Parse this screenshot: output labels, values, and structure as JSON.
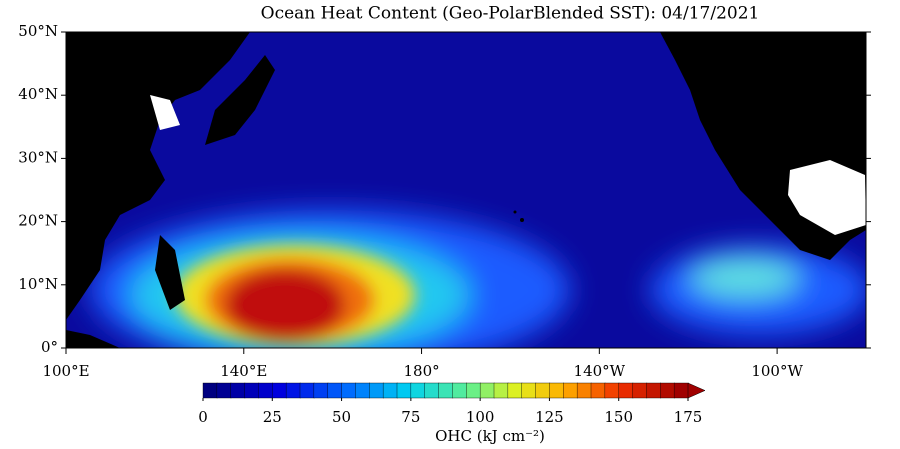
{
  "title": "Ocean Heat Content (Geo-PolarBlended SST): 04/17/2021",
  "map": {
    "lon_range": [
      100,
      280
    ],
    "lat_range": [
      0,
      50
    ],
    "lat_ticks": [
      {
        "value": 0,
        "label": "0°"
      },
      {
        "value": 10,
        "label": "10°N"
      },
      {
        "value": 20,
        "label": "20°N"
      },
      {
        "value": 30,
        "label": "30°N"
      },
      {
        "value": 40,
        "label": "40°N"
      },
      {
        "value": 50,
        "label": "50°N"
      }
    ],
    "lon_ticks": [
      {
        "value": 100,
        "label": "100°E"
      },
      {
        "value": 140,
        "label": "140°E"
      },
      {
        "value": 180,
        "label": "180°"
      },
      {
        "value": 220,
        "label": "140°W"
      },
      {
        "value": 260,
        "label": "100°W"
      }
    ]
  },
  "colorbar": {
    "range": [
      0,
      175
    ],
    "ticks": [
      0,
      25,
      50,
      75,
      100,
      125,
      150,
      175
    ],
    "label": "OHC (kJ cm⁻²)"
  }
}
